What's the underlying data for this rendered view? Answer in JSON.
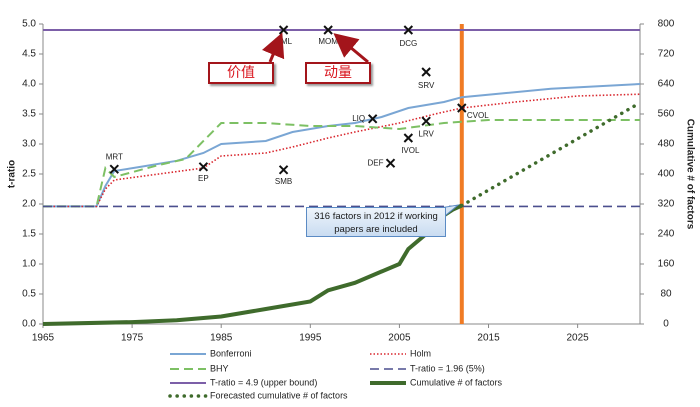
{
  "chart_data": {
    "type": "line",
    "xlim": [
      1965,
      2032
    ],
    "xticks": [
      1965,
      1975,
      1985,
      1995,
      2005,
      2015,
      2025
    ],
    "ylim": [
      0,
      5
    ],
    "yticks": [
      {
        "value": 0,
        "label": "0.0"
      },
      {
        "value": 0.5,
        "label": "0.5"
      },
      {
        "value": 1,
        "label": "1.0"
      },
      {
        "value": 1.5,
        "label": "1.5"
      },
      {
        "value": 2,
        "label": "2.0"
      },
      {
        "value": 2.5,
        "label": "2.5"
      },
      {
        "value": 3,
        "label": "3.0"
      },
      {
        "value": 3.5,
        "label": "3.5"
      },
      {
        "value": 4,
        "label": "4.0"
      },
      {
        "value": 4.5,
        "label": "4.5"
      },
      {
        "value": 5,
        "label": "5.0"
      }
    ],
    "y2lim": [
      0,
      800
    ],
    "y2ticks": [
      0,
      80,
      160,
      240,
      320,
      400,
      480,
      560,
      640,
      720,
      800
    ],
    "ylabel": "t-ratio",
    "y2label": "Cumulative # of factors",
    "series": [
      {
        "name": "Bonferroni",
        "color": "#7aa6d4",
        "style": "solid",
        "width": 2,
        "x": [
          1965,
          1971,
          1972,
          1973,
          1976,
          1980,
          1983,
          1985,
          1990,
          1993,
          1997,
          2000,
          2003,
          2006,
          2010,
          2012,
          2017,
          2022,
          2032
        ],
        "values": [
          1.96,
          1.96,
          2.3,
          2.55,
          2.62,
          2.72,
          2.85,
          3.0,
          3.05,
          3.2,
          3.3,
          3.35,
          3.45,
          3.6,
          3.7,
          3.78,
          3.85,
          3.92,
          4.0
        ]
      },
      {
        "name": "Holm",
        "color": "#d9272e",
        "style": "dotted",
        "width": 1.6,
        "x": [
          1965,
          1971,
          1972,
          1973,
          1978,
          1983,
          1985,
          1990,
          1993,
          1997,
          2000,
          2005,
          2009,
          2012,
          2018,
          2025,
          2032
        ],
        "values": [
          1.96,
          1.96,
          2.25,
          2.4,
          2.5,
          2.6,
          2.8,
          2.85,
          2.95,
          3.1,
          3.2,
          3.35,
          3.5,
          3.6,
          3.7,
          3.8,
          3.83
        ]
      },
      {
        "name": "BHY",
        "color": "#7dc064",
        "style": "dashed",
        "width": 2,
        "x": [
          1965,
          1971,
          1972,
          1973,
          1978,
          1981,
          1985,
          1990,
          1995,
          2000,
          2005,
          2010,
          2015,
          2032
        ],
        "values": [
          1.96,
          1.96,
          2.6,
          2.45,
          2.65,
          2.75,
          3.35,
          3.35,
          3.3,
          3.3,
          3.25,
          3.35,
          3.4,
          3.4
        ]
      },
      {
        "name": "T-ratio = 1.96 (5%)",
        "color": "#4b4f8e",
        "style": "dashed",
        "width": 1.6,
        "x": [
          1965,
          2032
        ],
        "values": [
          1.96,
          1.96
        ]
      },
      {
        "name": "T-ratio = 4.9 (upper bound)",
        "color": "#7c5fa8",
        "style": "solid",
        "width": 2,
        "x": [
          1965,
          2032
        ],
        "values": [
          4.9,
          4.9
        ]
      },
      {
        "name": "Cumulative # of factors",
        "color": "#3f6b2c",
        "style": "solid",
        "width": 4,
        "axis": "y2",
        "x": [
          1965,
          1975,
          1980,
          1985,
          1990,
          1995,
          1997,
          2000,
          2003,
          2005,
          2006,
          2008,
          2010,
          2011,
          2012
        ],
        "values": [
          0,
          5,
          10,
          20,
          40,
          60,
          90,
          110,
          140,
          160,
          200,
          240,
          290,
          305,
          316
        ]
      },
      {
        "name": "Forecasted cumulative # of factors",
        "color": "#3f6b2c",
        "style": "dots",
        "width": 3.5,
        "axis": "y2",
        "x": [
          2012,
          2032
        ],
        "values": [
          316,
          590
        ]
      }
    ],
    "vline": 2012,
    "vline_color": "#f07b24",
    "annotations": [
      {
        "label": "MRT",
        "x": 1973,
        "y": 2.58
      },
      {
        "label": "EP",
        "x": 1983,
        "y": 2.62
      },
      {
        "label": "SMB",
        "x": 1992,
        "y": 2.57
      },
      {
        "label": "HML",
        "x": 1992,
        "y": 4.9
      },
      {
        "label": "MOM",
        "x": 1997,
        "y": 4.9
      },
      {
        "label": "DCG",
        "x": 2006,
        "y": 4.9
      },
      {
        "label": "SRV",
        "x": 2008,
        "y": 4.2
      },
      {
        "label": "LIQ",
        "x": 2002,
        "y": 3.42
      },
      {
        "label": "DEF",
        "x": 2004,
        "y": 2.68
      },
      {
        "label": "IVOL",
        "x": 2006,
        "y": 3.1
      },
      {
        "label": "LRV",
        "x": 2008,
        "y": 3.38
      },
      {
        "label": "CVOL",
        "x": 2012,
        "y": 3.6
      }
    ],
    "notes": [
      "价值",
      "动量"
    ],
    "callout": "316 factors in 2012 if  working papers are included"
  }
}
